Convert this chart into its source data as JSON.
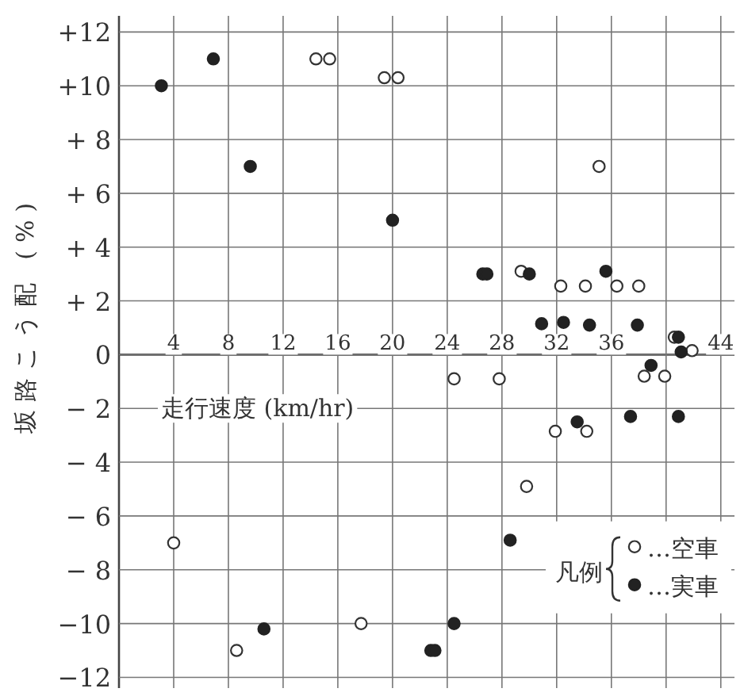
{
  "chart_data": {
    "type": "scatter",
    "xlabel": "走行速度 (km/hr)",
    "ylabel": "坂路こう配 (%)",
    "legend_title": "凡例",
    "legend": "bottom right",
    "grid": true,
    "xlim": [
      0,
      45
    ],
    "ylim": [
      -12.4,
      12.6
    ],
    "xticks": [
      4,
      8,
      12,
      16,
      20,
      24,
      28,
      32,
      36,
      {
        "value": 40,
        "label": null
      },
      44
    ],
    "yticks": [
      {
        "value": 12,
        "label": "+12"
      },
      {
        "value": 10,
        "label": "+10"
      },
      {
        "value": 8,
        "label": "+ 8"
      },
      {
        "value": 6,
        "label": "+ 6"
      },
      {
        "value": 4,
        "label": "+ 4"
      },
      {
        "value": 2,
        "label": "+ 2"
      },
      0,
      {
        "value": -2,
        "label": "− 2"
      },
      {
        "value": -4,
        "label": "− 4"
      },
      {
        "value": -6,
        "label": "− 6"
      },
      {
        "value": -8,
        "label": "− 8"
      },
      {
        "value": -10,
        "label": "−10"
      },
      {
        "value": -12,
        "label": "−12"
      }
    ],
    "series": [
      {
        "name": "…空車",
        "color": "#333333",
        "marker": "circle_open",
        "x": [
          14.4,
          15.4,
          19.4,
          20.4,
          35.1,
          29.4,
          32.3,
          34.1,
          36.4,
          38.0,
          40.6,
          41.9,
          24.5,
          27.8,
          38.4,
          39.9,
          31.9,
          34.2,
          29.8,
          4.0,
          8.6,
          17.7
        ],
        "values": [
          11,
          11,
          10.3,
          10.3,
          7.0,
          3.1,
          2.55,
          2.55,
          2.55,
          2.55,
          0.65,
          0.15,
          -0.9,
          -0.9,
          -0.8,
          -0.8,
          -2.85,
          -2.85,
          -4.9,
          -7.0,
          -11,
          -10
        ]
      },
      {
        "name": "…実車",
        "color": "#222222",
        "marker": "circle",
        "x": [
          3.1,
          6.9,
          9.6,
          20.0,
          26.6,
          26.9,
          30.0,
          30.9,
          32.5,
          34.4,
          35.6,
          37.9,
          40.9,
          41.1,
          38.9,
          33.5,
          37.4,
          40.9,
          28.6,
          24.5,
          22.8,
          23.1,
          10.6
        ],
        "values": [
          10,
          11,
          7,
          5.0,
          3.0,
          3.0,
          3.0,
          1.15,
          1.2,
          1.1,
          3.1,
          1.1,
          0.65,
          0.1,
          -0.4,
          -2.5,
          -2.3,
          -2.3,
          -6.9,
          -10.0,
          -11,
          -11,
          -10.2
        ]
      }
    ]
  }
}
